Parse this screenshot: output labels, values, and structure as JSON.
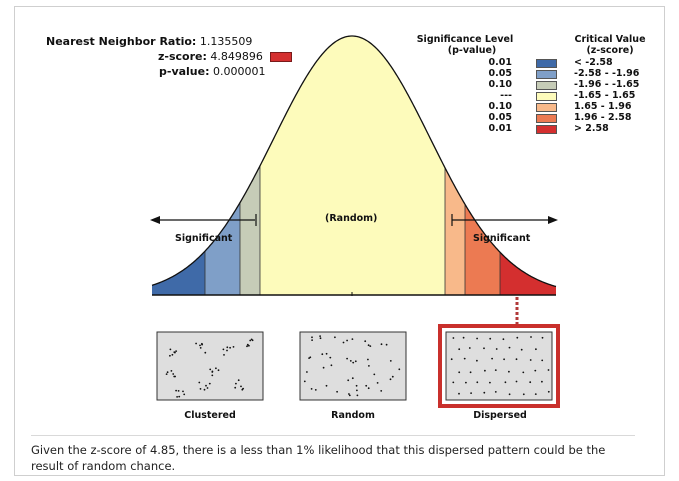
{
  "stats": {
    "nnr_label": "Nearest Neighbor Ratio:",
    "nnr_value": "1.135509",
    "z_label": "z-score:",
    "z_value": "4.849896",
    "p_label": "p-value:",
    "p_value": "0.000001"
  },
  "legend": {
    "sig_header_1": "Significance Level",
    "sig_header_2": "(p-value)",
    "crit_header_1": "Critical Value",
    "crit_header_2": "(z-score)",
    "rows": [
      {
        "p": "0.01",
        "z": "< -2.58",
        "color": "#3f6aa8"
      },
      {
        "p": "0.05",
        "z": "-2.58 - -1.96",
        "color": "#7f9fc8"
      },
      {
        "p": "0.10",
        "z": "-1.96 - -1.65",
        "color": "#c6ccb7"
      },
      {
        "p": "---",
        "z": "-1.65 - 1.65",
        "color": "#fdfbbb"
      },
      {
        "p": "0.10",
        "z": "1.65 - 1.96",
        "color": "#f8b98a"
      },
      {
        "p": "0.05",
        "z": "1.96 - 2.58",
        "color": "#ec7a52"
      },
      {
        "p": "0.01",
        "z": "> 2.58",
        "color": "#d42f2f"
      }
    ]
  },
  "curve": {
    "center_label": "(Random)",
    "left_label": "Significant",
    "right_label": "Significant",
    "z_marker_color": "#d42f2f"
  },
  "patterns": [
    {
      "label": "Clustered"
    },
    {
      "label": "Random"
    },
    {
      "label": "Dispersed"
    }
  ],
  "summary": "Given the z-score of 4.85, there is a less than 1% likelihood that this dispersed pattern could be the result of random chance."
}
